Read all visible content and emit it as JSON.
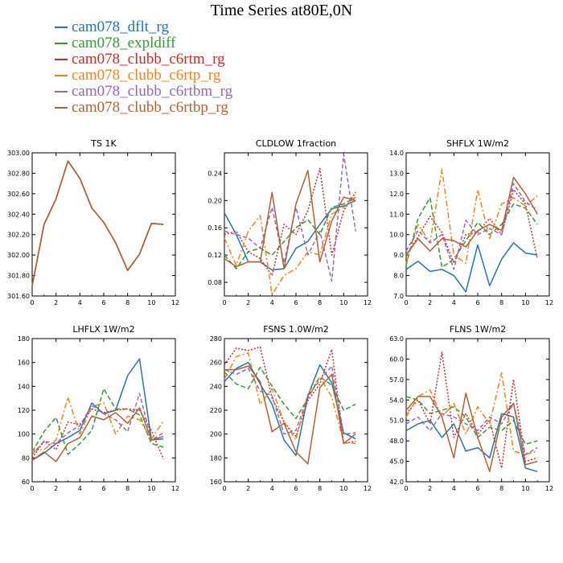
{
  "page": {
    "title": "Time Series at80E,0N"
  },
  "colors": {
    "series": [
      "#1f77b4",
      "#2ca02c",
      "#d62728",
      "#ff7f0e",
      "#9467bd",
      "#b5602f"
    ]
  },
  "legend": [
    {
      "label": "cam078_dflt_rg",
      "color": "#1f77b4"
    },
    {
      "label": "cam078_expldiff",
      "color": "#2ca02c"
    },
    {
      "label": "cam078_clubb_c6rtm_rg",
      "color": "#d62728"
    },
    {
      "label": "cam078_clubb_c6rtp_rg",
      "color": "#ff7f0e"
    },
    {
      "label": "cam078_clubb_c6rtbm_rg",
      "color": "#9467bd"
    },
    {
      "label": "cam078_clubb_c6rtbp_rg",
      "color": "#b5602f"
    }
  ],
  "chart_data": [
    {
      "type": "line",
      "title": "TS   1K",
      "x": [
        0,
        1,
        2,
        3,
        4,
        5,
        6,
        7,
        8,
        9,
        10,
        11
      ],
      "xlim": [
        0,
        12
      ],
      "xticks": [
        "0",
        "2",
        "4",
        "6",
        "8",
        "10",
        "12"
      ],
      "ylim": [
        301.6,
        303.0
      ],
      "yticks": [
        "301.60",
        "301.80",
        "302.00",
        "302.20",
        "302.40",
        "302.60",
        "302.80",
        "303.00"
      ],
      "grid": false,
      "series": [
        {
          "color": "#1f77b4",
          "values": [
            301.7,
            302.3,
            302.55,
            302.92,
            302.75,
            302.46,
            302.32,
            302.12,
            301.85,
            302.01,
            302.31,
            302.3
          ]
        },
        {
          "color": "#2ca02c",
          "values": [
            301.7,
            302.3,
            302.55,
            302.92,
            302.75,
            302.46,
            302.32,
            302.12,
            301.85,
            302.01,
            302.31,
            302.3
          ]
        },
        {
          "color": "#d62728",
          "values": [
            301.7,
            302.3,
            302.55,
            302.92,
            302.75,
            302.46,
            302.32,
            302.12,
            301.85,
            302.01,
            302.31,
            302.3
          ]
        },
        {
          "color": "#ff7f0e",
          "values": [
            301.7,
            302.3,
            302.55,
            302.92,
            302.75,
            302.46,
            302.32,
            302.12,
            301.85,
            302.01,
            302.31,
            302.3
          ]
        },
        {
          "color": "#9467bd",
          "values": [
            301.7,
            302.3,
            302.55,
            302.92,
            302.75,
            302.46,
            302.32,
            302.12,
            301.85,
            302.01,
            302.31,
            302.3
          ]
        },
        {
          "color": "#b5602f",
          "values": [
            301.7,
            302.3,
            302.55,
            302.92,
            302.75,
            302.46,
            302.32,
            302.12,
            301.85,
            302.01,
            302.31,
            302.3
          ]
        }
      ]
    },
    {
      "type": "line",
      "title": "CLDLOW   1fraction",
      "x": [
        0,
        1,
        2,
        3,
        4,
        5,
        6,
        7,
        8,
        9,
        10,
        11
      ],
      "xlim": [
        0,
        12
      ],
      "xticks": [
        "0",
        "2",
        "4",
        "6",
        "8",
        "10",
        "12"
      ],
      "ylim": [
        0.06,
        0.27
      ],
      "yticks": [
        "0.08",
        "0.12",
        "0.16",
        "0.20",
        "0.24"
      ],
      "grid": false,
      "series": [
        {
          "color": "#1f77b4",
          "values": [
            0.182,
            0.15,
            0.11,
            0.11,
            0.098,
            0.1,
            0.13,
            0.14,
            0.165,
            0.188,
            0.192,
            0.2
          ]
        },
        {
          "color": "#2ca02c",
          "values": [
            0.12,
            0.1,
            0.125,
            0.13,
            0.12,
            0.14,
            0.16,
            0.172,
            0.15,
            0.19,
            0.195,
            0.205
          ]
        },
        {
          "color": "#d62728",
          "values": [
            0.15,
            0.155,
            0.125,
            0.115,
            0.09,
            0.165,
            0.15,
            0.185,
            0.247,
            0.12,
            0.185,
            0.212
          ]
        },
        {
          "color": "#ff7f0e",
          "values": [
            0.145,
            0.105,
            0.155,
            0.178,
            0.062,
            0.09,
            0.1,
            0.125,
            0.12,
            0.18,
            0.19,
            0.205
          ]
        },
        {
          "color": "#9467bd",
          "values": [
            0.155,
            0.15,
            0.145,
            0.13,
            0.19,
            0.108,
            0.19,
            0.12,
            0.155,
            0.082,
            0.268,
            0.155
          ]
        },
        {
          "color": "#b5602f",
          "values": [
            0.115,
            0.103,
            0.11,
            0.11,
            0.212,
            0.1,
            0.195,
            0.244,
            0.11,
            0.17,
            0.205,
            0.2
          ]
        }
      ]
    },
    {
      "type": "line",
      "title": "SHFLX   1W/m2",
      "x": [
        0,
        1,
        2,
        3,
        4,
        5,
        6,
        7,
        8,
        9,
        10,
        11
      ],
      "xlim": [
        0,
        12
      ],
      "xticks": [
        "0",
        "2",
        "4",
        "6",
        "8",
        "10",
        "12"
      ],
      "ylim": [
        7.0,
        14.0
      ],
      "yticks": [
        "7.0",
        "8.0",
        "9.0",
        "10.0",
        "11.0",
        "12.0",
        "13.0",
        "14.0"
      ],
      "grid": false,
      "series": [
        {
          "color": "#1f77b4",
          "values": [
            8.3,
            8.7,
            8.2,
            8.3,
            8.0,
            7.2,
            9.5,
            7.5,
            8.8,
            9.6,
            9.1,
            9.0
          ]
        },
        {
          "color": "#2ca02c",
          "values": [
            8.5,
            10.8,
            11.8,
            8.4,
            8.8,
            9.7,
            10.6,
            10.0,
            10.5,
            11.5,
            11.3,
            10.5
          ]
        },
        {
          "color": "#d62728",
          "values": [
            9.0,
            9.9,
            10.9,
            10.1,
            8.6,
            10.0,
            10.1,
            10.8,
            10.0,
            12.2,
            11.5,
            8.8
          ]
        },
        {
          "color": "#ff7f0e",
          "values": [
            8.6,
            10.5,
            9.6,
            13.2,
            9.0,
            8.6,
            12.2,
            9.8,
            11.5,
            11.8,
            11.4,
            11.9
          ]
        },
        {
          "color": "#9467bd",
          "values": [
            9.2,
            10.2,
            9.6,
            10.0,
            8.3,
            10.7,
            10.0,
            10.3,
            10.0,
            12.5,
            11.6,
            11.2
          ]
        },
        {
          "color": "#b5602f",
          "values": [
            9.0,
            9.8,
            9.2,
            9.8,
            9.7,
            9.4,
            10.2,
            10.5,
            10.2,
            12.8,
            12.0,
            11.0
          ]
        }
      ]
    },
    {
      "type": "line",
      "title": "LHFLX   1W/m2",
      "x": [
        0,
        1,
        2,
        3,
        4,
        5,
        6,
        7,
        8,
        9,
        10,
        11
      ],
      "xlim": [
        0,
        12
      ],
      "xticks": [
        "0",
        "2",
        "4",
        "6",
        "8",
        "10",
        "12"
      ],
      "ylim": [
        60,
        180
      ],
      "yticks": [
        "60",
        "80",
        "100",
        "120",
        "140",
        "160",
        "180"
      ],
      "grid": false,
      "series": [
        {
          "color": "#1f77b4",
          "values": [
            78,
            84,
            92,
            97,
            103,
            126,
            117,
            120,
            149,
            163,
            95,
            96
          ]
        },
        {
          "color": "#2ca02c",
          "values": [
            85,
            102,
            114,
            83,
            92,
            103,
            138,
            121,
            121,
            116,
            92,
            89
          ]
        },
        {
          "color": "#d62728",
          "values": [
            80,
            94,
            87,
            110,
            108,
            121,
            118,
            120,
            121,
            120,
            103,
            79
          ]
        },
        {
          "color": "#ff7f0e",
          "values": [
            86,
            87,
            95,
            131,
            100,
            123,
            126,
            100,
            115,
            112,
            96,
            111
          ]
        },
        {
          "color": "#9467bd",
          "values": [
            83,
            94,
            92,
            101,
            107,
            124,
            117,
            112,
            102,
            134,
            95,
            101
          ]
        },
        {
          "color": "#b5602f",
          "values": [
            78,
            85,
            77,
            92,
            97,
            115,
            112,
            118,
            109,
            122,
            95,
            98
          ]
        }
      ]
    },
    {
      "type": "line",
      "title": "FSNS   1.0W/m2",
      "x": [
        0,
        1,
        2,
        3,
        4,
        5,
        6,
        7,
        8,
        9,
        10,
        11
      ],
      "xlim": [
        0,
        12
      ],
      "xticks": [
        "0",
        "2",
        "4",
        "6",
        "8",
        "10",
        "12"
      ],
      "ylim": [
        160,
        280
      ],
      "yticks": [
        "160",
        "180",
        "200",
        "220",
        "240",
        "260",
        "280"
      ],
      "grid": false,
      "series": [
        {
          "color": "#1f77b4",
          "values": [
            244,
            255,
            260,
            242,
            225,
            195,
            182,
            232,
            258,
            243,
            201,
            196
          ]
        },
        {
          "color": "#2ca02c",
          "values": [
            252,
            242,
            238,
            256,
            240,
            225,
            213,
            230,
            248,
            241,
            220,
            225
          ]
        },
        {
          "color": "#d62728",
          "values": [
            258,
            272,
            270,
            273,
            230,
            210,
            198,
            228,
            242,
            271,
            192,
            194
          ]
        },
        {
          "color": "#ff7f0e",
          "values": [
            246,
            265,
            268,
            225,
            238,
            210,
            195,
            234,
            248,
            231,
            193,
            192
          ]
        },
        {
          "color": "#9467bd",
          "values": [
            254,
            250,
            255,
            236,
            232,
            200,
            203,
            232,
            245,
            257,
            200,
            201
          ]
        },
        {
          "color": "#b5602f",
          "values": [
            254,
            254,
            257,
            244,
            202,
            209,
            185,
            175,
            239,
            250,
            192,
            200
          ]
        }
      ]
    },
    {
      "type": "line",
      "title": "FLNS   1W/m2",
      "x": [
        0,
        1,
        2,
        3,
        4,
        5,
        6,
        7,
        8,
        9,
        10,
        11
      ],
      "xlim": [
        0,
        12
      ],
      "xticks": [
        "0",
        "2",
        "4",
        "6",
        "8",
        "10",
        "12"
      ],
      "ylim": [
        42.0,
        63.0
      ],
      "yticks": [
        "42.0",
        "45.0",
        "48.0",
        "51.0",
        "54.0",
        "57.0",
        "60.0",
        "63.0"
      ],
      "grid": false,
      "series": [
        {
          "color": "#1f77b4",
          "values": [
            49.5,
            50.5,
            51.0,
            48.5,
            50.5,
            46.5,
            47.0,
            45.5,
            52.0,
            51.5,
            44.0,
            43.5
          ]
        },
        {
          "color": "#2ca02c",
          "values": [
            54.5,
            54.0,
            52.0,
            52.5,
            53.0,
            51.5,
            48.5,
            50.0,
            49.5,
            51.0,
            47.5,
            48.0
          ]
        },
        {
          "color": "#d62728",
          "values": [
            52.0,
            54.0,
            50.5,
            61.0,
            48.5,
            52.0,
            49.0,
            51.0,
            44.0,
            57.0,
            45.0,
            45.5
          ]
        },
        {
          "color": "#ff7f0e",
          "values": [
            51.5,
            54.5,
            55.5,
            51.5,
            53.5,
            49.0,
            53.0,
            50.5,
            58.0,
            46.5,
            46.0,
            46.5
          ]
        },
        {
          "color": "#9467bd",
          "values": [
            50.5,
            51.5,
            49.5,
            52.0,
            51.5,
            50.5,
            49.5,
            51.5,
            50.5,
            53.5,
            46.0,
            47.0
          ]
        },
        {
          "color": "#b5602f",
          "values": [
            52.5,
            54.5,
            54.5,
            51.5,
            45.5,
            55.0,
            48.5,
            43.5,
            51.5,
            53.5,
            44.5,
            45.0
          ]
        }
      ]
    }
  ]
}
